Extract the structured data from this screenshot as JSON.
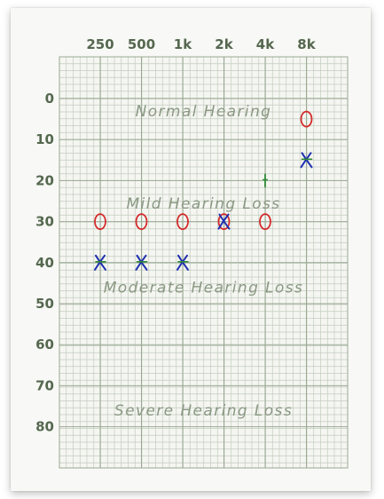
{
  "colors": {
    "paper": "#f8f8f6",
    "grid_minor": "#c3ccbf",
    "grid_major": "#9aa893",
    "tick_text": "#55684f",
    "zone_text": "#8a9883",
    "right_ear": "#d42a2a",
    "left_ear": "#1f2fb0",
    "marker_green": "#2f8a35"
  },
  "chart_data": {
    "type": "scatter",
    "title": "",
    "xlabel": "",
    "ylabel": "",
    "x_scale": "log2",
    "categories": [
      "250",
      "500",
      "1k",
      "2k",
      "4k",
      "8k"
    ],
    "x_values_hz": [
      250,
      500,
      1000,
      2000,
      4000,
      8000
    ],
    "y_ticks": [
      "0",
      "10",
      "20",
      "30",
      "40",
      "50",
      "60",
      "70",
      "80"
    ],
    "y_tick_values": [
      0,
      10,
      20,
      30,
      40,
      50,
      60,
      70,
      80
    ],
    "ylim": [
      -10,
      90
    ],
    "y_inverted": true,
    "grid": true,
    "zones": [
      {
        "label": "Normal Hearing",
        "y": 3
      },
      {
        "label": "Mild Hearing Loss",
        "y": 25.5
      },
      {
        "label": "Moderate Hearing Loss",
        "y": 46
      },
      {
        "label": "Severe Hearing Loss",
        "y": 76
      }
    ],
    "series": [
      {
        "marker": "circle",
        "color": "#d42a2a",
        "values": [
          30,
          30,
          30,
          30,
          30,
          5
        ]
      },
      {
        "marker": "cross",
        "color": "#1f2fb0",
        "values": [
          40,
          40,
          40,
          30,
          20,
          15
        ]
      }
    ]
  }
}
